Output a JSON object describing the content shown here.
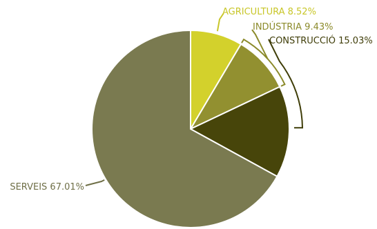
{
  "chart_data": {
    "type": "pie",
    "title": "",
    "slices": [
      {
        "label": "AGRICULTURA 8.52%",
        "value": 8.52,
        "color": "#d3d12c",
        "label_color": "#c8c628"
      },
      {
        "label": "INDÚSTRIA 9.43%",
        "value": 9.43,
        "color": "#929030",
        "label_color": "#8b8a2a"
      },
      {
        "label": "CONSTRUCCIÓ 15.03%",
        "value": 15.03,
        "color": "#47450a",
        "label_color": "#3f3d08"
      },
      {
        "label": "SERVEIS 67.01%",
        "value": 67.01,
        "color": "#7a7a50",
        "label_color": "#6f6f47"
      }
    ]
  }
}
